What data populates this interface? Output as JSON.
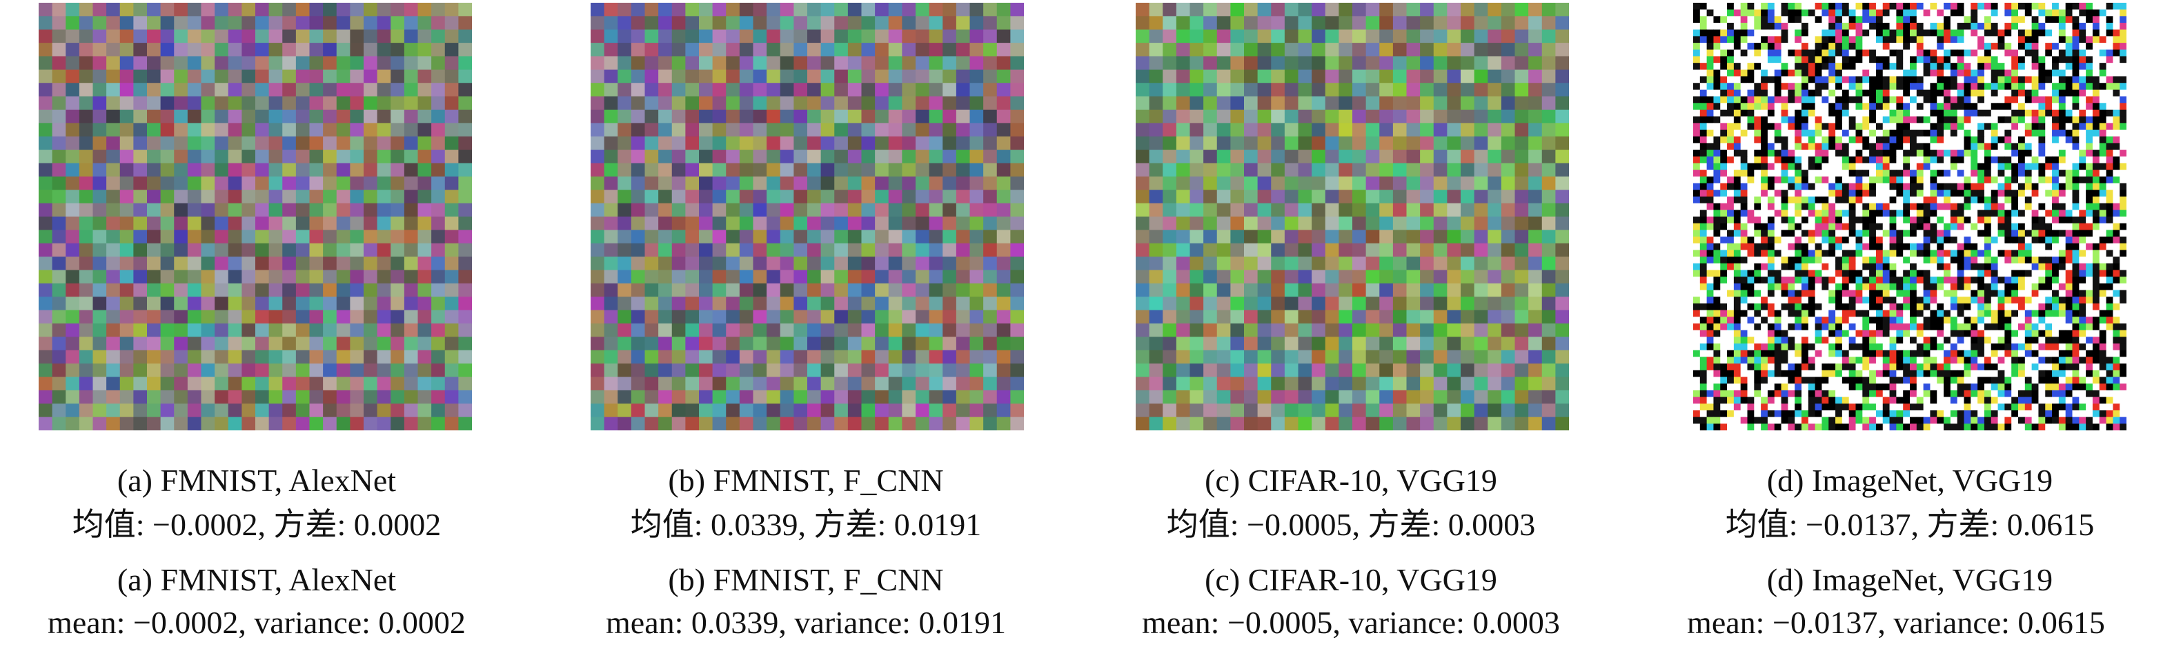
{
  "panels": [
    {
      "caption_zh": {
        "title": "(a) FMNIST, AlexNet",
        "stats": "均值: −0.0002, 方差: 0.0002"
      },
      "caption_en": {
        "title": "(a) FMNIST, AlexNet",
        "stats": "mean: −0.0002, variance: 0.0002"
      }
    },
    {
      "caption_zh": {
        "title": "(b) FMNIST, F_CNN",
        "stats": "均值: 0.0339, 方差: 0.0191"
      },
      "caption_en": {
        "title": "(b) FMNIST, F_CNN",
        "stats": "mean: 0.0339, variance: 0.0191"
      }
    },
    {
      "caption_zh": {
        "title": "(c) CIFAR-10, VGG19",
        "stats": "均值: −0.0005, 方差: 0.0003"
      },
      "caption_en": {
        "title": "(c) CIFAR-10, VGG19",
        "stats": "mean: −0.0005, variance: 0.0003"
      }
    },
    {
      "caption_zh": {
        "title": "(d) ImageNet, VGG19",
        "stats": "均值: −0.0137, 方差: 0.0615"
      },
      "caption_en": {
        "title": "(d) ImageNet, VGG19",
        "stats": "mean: −0.0137, variance: 0.0615"
      }
    }
  ]
}
